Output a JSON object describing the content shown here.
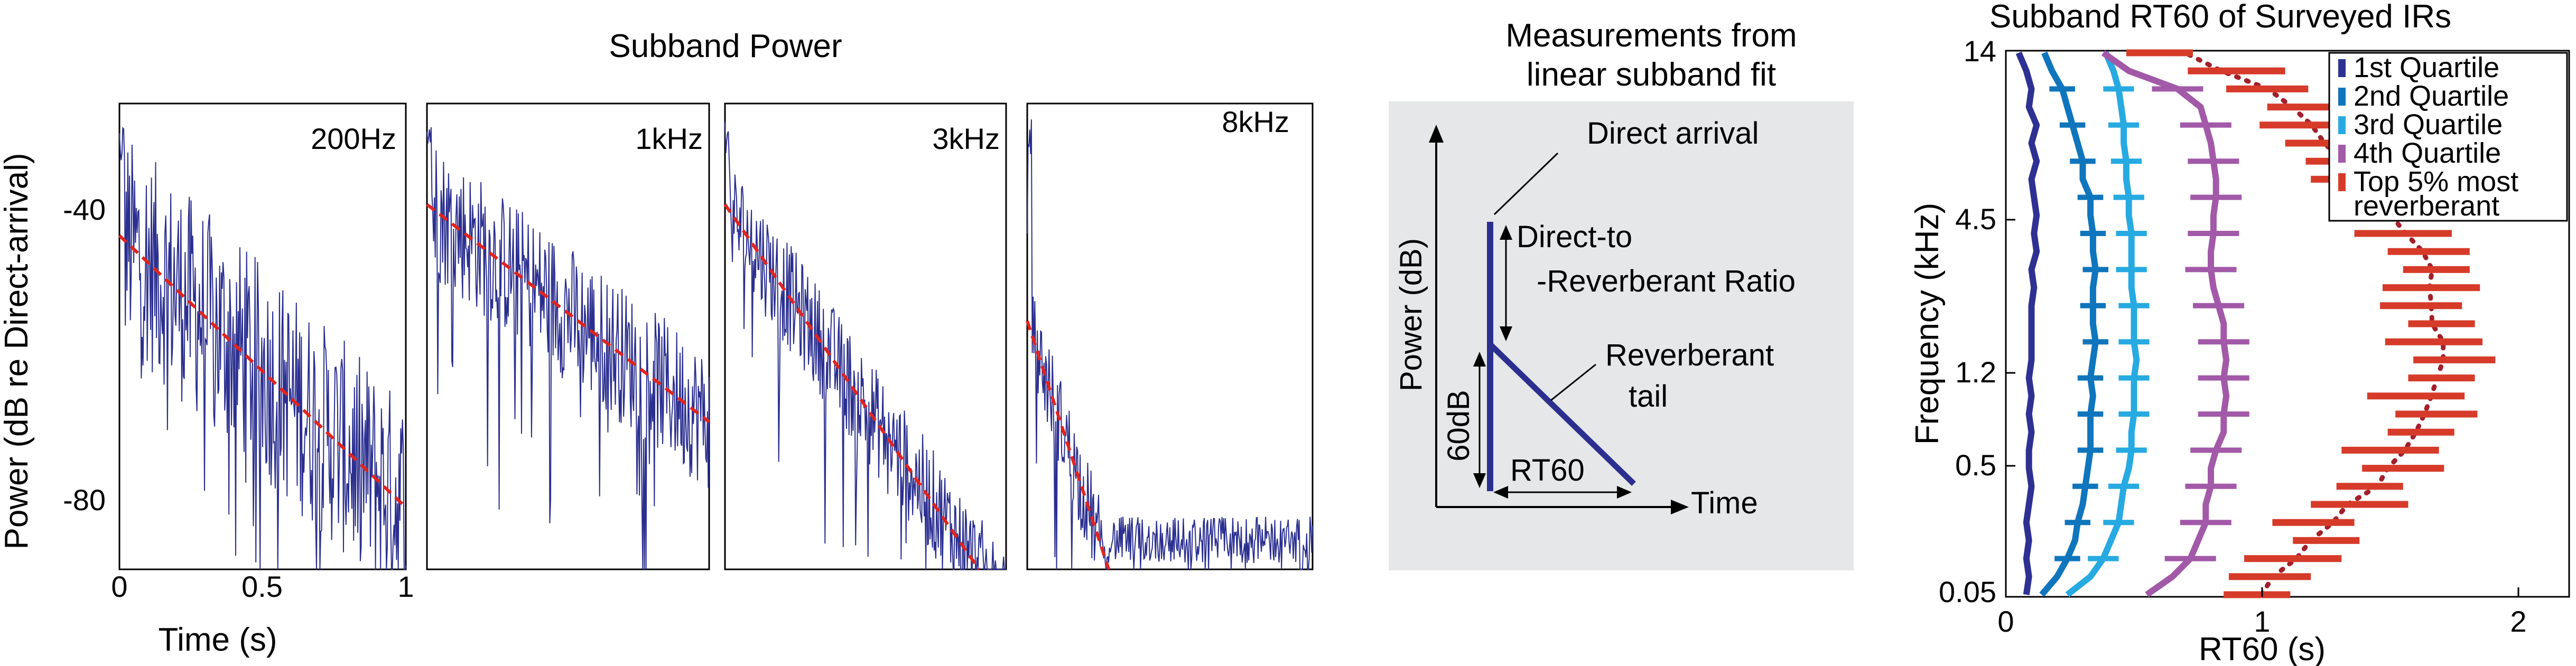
{
  "subband_power": {
    "title": "Subband Power",
    "ylabel": "Power  (dB re Direct-arrival)",
    "xlabel": "Time  (s)",
    "yticks": [
      "-40",
      "-80"
    ],
    "xticks": [
      "0",
      "0.5",
      "1"
    ],
    "panels": [
      {
        "label": "200Hz"
      },
      {
        "label": "1kHz"
      },
      {
        "label": "3kHz"
      },
      {
        "label": "8kHz"
      }
    ],
    "trace_color": "#2b2f8f",
    "fit_color": "#e3231e"
  },
  "diagram": {
    "title_line1": "Measurements from",
    "title_line2": "linear subband fit",
    "direct_arrival": "Direct arrival",
    "drr_line1": "Direct-to",
    "drr_line2": "-Reverberant Ratio",
    "tail_line1": "Reverberant",
    "tail_line2": "tail",
    "ylabel": "Power (dB)",
    "xlabel": "Time",
    "db_label": "60dB",
    "rt_label": "RT60",
    "background": "#e6e7e8",
    "line_color": "#2b2f8f"
  },
  "chart_data": [
    {
      "type": "line",
      "title": "Subband Power",
      "xlabel": "Time  (s)",
      "ylabel": "Power  (dB re Direct-arrival)",
      "xlim": [
        0,
        1
      ],
      "ylim": [
        -90,
        -30
      ],
      "yticks": [
        -40,
        -80
      ],
      "xticks": [
        0,
        0.5,
        1
      ],
      "panels": [
        {
          "name": "200Hz",
          "fit": {
            "x": [
              0,
              1
            ],
            "y": [
              -47,
              -82
            ]
          }
        },
        {
          "name": "1kHz",
          "fit": {
            "x": [
              0,
              1
            ],
            "y": [
              -43,
              -71
            ]
          }
        },
        {
          "name": "3kHz",
          "fit": {
            "x": [
              0,
              1
            ],
            "y": [
              -43,
              -95
            ]
          }
        },
        {
          "name": "8kHz",
          "fit": {
            "x": [
              0,
              1
            ],
            "y": [
              -58,
              -170
            ]
          }
        }
      ]
    },
    {
      "type": "line",
      "title": "Subband RT60 of Surveyed IRs",
      "xlabel": "RT60 (s)",
      "ylabel": "Frequency (kHz)",
      "xlim": [
        0,
        2.2
      ],
      "yticks": [
        "0.05",
        "0.5",
        "1.2",
        "4.5",
        "14"
      ],
      "xticks": [
        0,
        1,
        2
      ],
      "legend": "top-right",
      "series": [
        {
          "name": "1st Quartile",
          "color": "#2e3192",
          "values": [
            0.08,
            0.09,
            0.08,
            0.09,
            0.08,
            0.09,
            0.1,
            0.09,
            0.09,
            0.1,
            0.09,
            0.1,
            0.09,
            0.1,
            0.1,
            0.1,
            0.1,
            0.11,
            0.1,
            0.12,
            0.11,
            0.12,
            0.11,
            0.1,
            0.12,
            0.1,
            0.12,
            0.09,
            0.1,
            0.08,
            0.05
          ]
        },
        {
          "name": "2nd Quartile",
          "color": "#0f75bc",
          "values": [
            0.14,
            0.2,
            0.24,
            0.27,
            0.28,
            0.3,
            0.31,
            0.32,
            0.33,
            0.33,
            0.33,
            0.34,
            0.33,
            0.34,
            0.35,
            0.34,
            0.34,
            0.34,
            0.35,
            0.34,
            0.34,
            0.33,
            0.33,
            0.3,
            0.3,
            0.28,
            0.26,
            0.24,
            0.22,
            0.18,
            0.15
          ]
        },
        {
          "name": "3rd Quartile",
          "color": "#27aae1",
          "values": [
            0.24,
            0.33,
            0.38,
            0.41,
            0.44,
            0.45,
            0.46,
            0.48,
            0.49,
            0.49,
            0.5,
            0.5,
            0.5,
            0.51,
            0.5,
            0.5,
            0.5,
            0.49,
            0.49,
            0.49,
            0.49,
            0.48,
            0.48,
            0.47,
            0.47,
            0.46,
            0.46,
            0.45,
            0.44,
            0.42,
            0.39
          ]
        },
        {
          "name": "4th Quartile",
          "color": "#a259a8",
          "values": [
            0.55,
            0.65,
            0.72,
            0.75,
            0.78,
            0.78,
            0.8,
            0.8,
            0.82,
            0.85,
            0.85,
            0.86,
            0.85,
            0.86,
            0.85,
            0.85,
            0.83,
            0.81,
            0.8,
            0.8,
            0.81,
            0.81,
            0.82,
            0.82,
            0.81,
            0.8,
            0.78,
            0.76,
            0.67,
            0.48,
            0.38
          ]
        },
        {
          "name": "Top 5% most reverberant",
          "color": "#d63b2a",
          "values": [
            0.98,
            1.03,
            1.12,
            1.25,
            1.2,
            1.38,
            1.42,
            1.55,
            1.5,
            1.62,
            1.68,
            1.6,
            1.7,
            1.75,
            1.67,
            1.7,
            1.62,
            1.66,
            1.68,
            1.65,
            1.55,
            1.48,
            1.48,
            1.38,
            1.3,
            1.25,
            1.18,
            1.15,
            1.02,
            0.9,
            0.6
          ]
        }
      ],
      "median_dotted": {
        "color": "#a31f2a"
      }
    }
  ],
  "rt60": {
    "title": "Subband RT60 of Surveyed IRs",
    "xlabel": "RT60 (s)",
    "ylabel": "Frequency (kHz)",
    "yticks": [
      "0.05",
      "0.5",
      "1.2",
      "4.5",
      "14"
    ],
    "xticks": [
      "0",
      "1",
      "2"
    ],
    "legend": [
      "1st Quartile",
      "2nd Quartile",
      "3rd Quartile",
      "4th Quartile",
      "Top 5% most",
      "reverberant"
    ]
  }
}
